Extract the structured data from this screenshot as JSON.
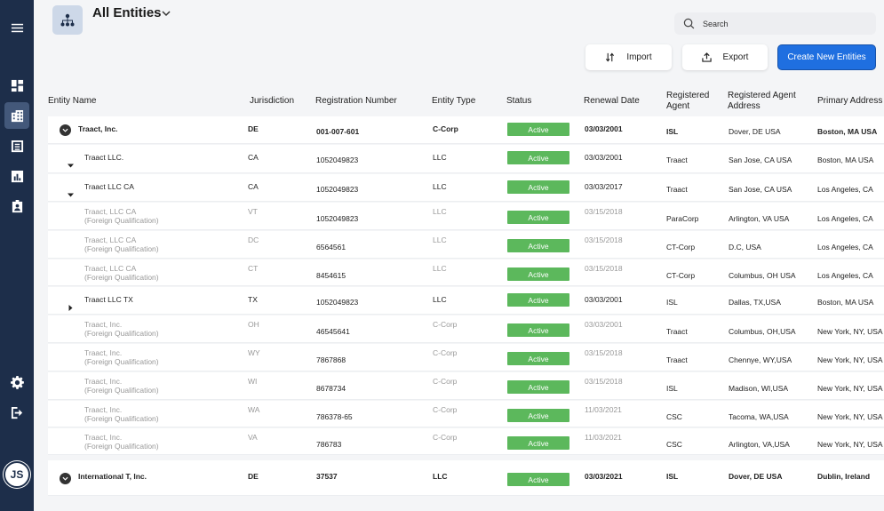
{
  "header": {
    "title": "All Entities"
  },
  "search": {
    "placeholder": "Search"
  },
  "toolbar": {
    "import_label": "Import",
    "export_label": "Export",
    "create_label": "Create New Entities"
  },
  "sidebar": {
    "items": [
      "menu-icon",
      "dashboard-icon",
      "entities-icon",
      "list-icon",
      "reports-icon",
      "contacts-icon"
    ],
    "bottom": [
      "settings-icon",
      "logout-icon"
    ],
    "avatar_initials": "JS"
  },
  "table": {
    "columns": [
      "Entity Name",
      "Jurisdiction",
      "Registration Number",
      "Entity Type",
      "Status",
      "Renewal Date",
      "Registered Agent",
      "Registered Agent Address",
      "Primary Address"
    ],
    "rows": [
      {
        "name": "Traact, Inc.",
        "sub": "",
        "jur": "DE",
        "reg": "001-007-601",
        "type": "C-Corp",
        "status": "Active",
        "renewal": "03/03/2001",
        "agent": "ISL",
        "agent_addr": "Dover, DE USA",
        "primary": "Boston, MA USA"
      },
      {
        "name": "Traact LLC.",
        "sub": "",
        "jur": "CA",
        "reg": "1052049823",
        "type": "LLC",
        "status": "Active",
        "renewal": "03/03/2001",
        "agent": "Traact",
        "agent_addr": "San Jose, CA USA",
        "primary": "Boston, MA USA"
      },
      {
        "name": "Traact LLC CA",
        "sub": "",
        "jur": "CA",
        "reg": "1052049823",
        "type": "LLC",
        "status": "Active",
        "renewal": "03/03/2017",
        "agent": "Traact",
        "agent_addr": "San Jose, CA USA",
        "primary": "Los Angeles, CA"
      },
      {
        "name": "Traact, LLC CA",
        "sub": "(Foreign Qualification)",
        "jur": "VT",
        "reg": "1052049823",
        "type": "LLC",
        "status": "Active",
        "renewal": "03/15/2018",
        "agent": "ParaCorp",
        "agent_addr": "Arlington, VA USA",
        "primary": "Los Angeles, CA"
      },
      {
        "name": "Traact, LLC CA",
        "sub": "(Foreign Qualification)",
        "jur": "DC",
        "reg": "6564561",
        "type": "LLC",
        "status": "Active",
        "renewal": "03/15/2018",
        "agent": "CT-Corp",
        "agent_addr": "D.C, USA",
        "primary": "Los Angeles, CA"
      },
      {
        "name": "Traact, LLC CA",
        "sub": "(Foreign Qualification)",
        "jur": "CT",
        "reg": "8454615",
        "type": "LLC",
        "status": "Active",
        "renewal": "03/15/2018",
        "agent": "CT-Corp",
        "agent_addr": "Columbus, OH USA",
        "primary": "Los Angeles, CA"
      },
      {
        "name": "Traact LLC TX",
        "sub": "",
        "jur": "TX",
        "reg": "1052049823",
        "type": "LLC",
        "status": "Active",
        "renewal": "03/03/2001",
        "agent": "ISL",
        "agent_addr": "Dallas, TX,USA",
        "primary": "Boston, MA USA"
      },
      {
        "name": "Traact, Inc.",
        "sub": "(Foreign Qualification)",
        "jur": "OH",
        "reg": "46545641",
        "type": "C-Corp",
        "status": "Active",
        "renewal": "03/03/2001",
        "agent": "Traact",
        "agent_addr": "Columbus, OH,USA",
        "primary": "New York, NY, USA"
      },
      {
        "name": "Traact, Inc.",
        "sub": "(Foreign Qualification)",
        "jur": "WY",
        "reg": "7867868",
        "type": "C-Corp",
        "status": "Active",
        "renewal": "03/15/2018",
        "agent": "Traact",
        "agent_addr": "Chennye, WY,USA",
        "primary": "New York, NY, USA"
      },
      {
        "name": "Traact, Inc.",
        "sub": "(Foreign Qualification)",
        "jur": "WI",
        "reg": "8678734",
        "type": "C-Corp",
        "status": "Active",
        "renewal": "03/15/2018",
        "agent": "ISL",
        "agent_addr": "Madison, WI,USA",
        "primary": "New York, NY, USA"
      },
      {
        "name": "Traact, Inc.",
        "sub": "(Foreign Qualification)",
        "jur": "WA",
        "reg": "786378-65",
        "type": "C-Corp",
        "status": "Active",
        "renewal": "11/03/2021",
        "agent": "CSC",
        "agent_addr": "Tacoma, WA,USA",
        "primary": "New York, NY, USA"
      },
      {
        "name": "Traact, Inc.",
        "sub": "(Foreign Qualification)",
        "jur": "VA",
        "reg": "786783",
        "type": "C-Corp",
        "status": "Active",
        "renewal": "11/03/2021",
        "agent": "CSC",
        "agent_addr": "Arlington, VA,USA",
        "primary": "New York, NY, USA"
      },
      {
        "name": "International T, Inc.",
        "sub": "",
        "jur": "DE",
        "reg": "37537",
        "type": "LLC",
        "status": "Active",
        "renewal": "03/03/2021",
        "agent": "ISL",
        "agent_addr": "Dover, DE USA",
        "primary": "Dublin, Ireland"
      }
    ]
  },
  "colors": {
    "sidebar": "#1d2e4a",
    "primary_button": "#1f6fe0",
    "active_status": "#5cb85c"
  }
}
